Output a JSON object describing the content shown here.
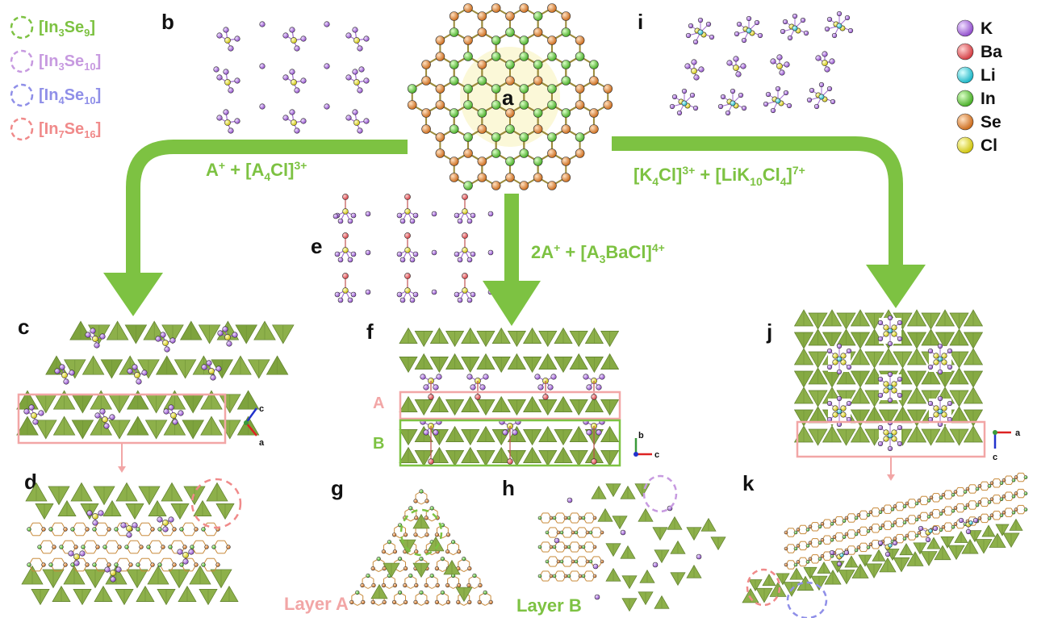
{
  "clusters": [
    {
      "name": "[In3Se9]",
      "base": "[In",
      "n1": "3",
      "mid": "Se",
      "n2": "9",
      "end": "]",
      "color": "#7dc242"
    },
    {
      "name": "[In3Se10]",
      "base": "[In",
      "n1": "3",
      "mid": "Se",
      "n2": "10",
      "end": "]",
      "color": "#c79ae0"
    },
    {
      "name": "[In4Se10]",
      "base": "[In",
      "n1": "4",
      "mid": "Se",
      "n2": "10",
      "end": "]",
      "color": "#8f8fe8"
    },
    {
      "name": "[In7Se16]",
      "base": "[In",
      "n1": "7",
      "mid": "Se",
      "n2": "16",
      "end": "]",
      "color": "#f08a8a"
    }
  ],
  "legend": [
    {
      "label": "K",
      "color": "#9b59d0"
    },
    {
      "label": "Ba",
      "color": "#e0484c"
    },
    {
      "label": "Li",
      "color": "#1fc7d6"
    },
    {
      "label": "In",
      "color": "#58c230"
    },
    {
      "label": "Se",
      "color": "#d9782a"
    },
    {
      "label": "Cl",
      "color": "#e6dc1a"
    }
  ],
  "panels": {
    "a": "a",
    "b": "b",
    "c": "c",
    "d": "d",
    "e": "e",
    "f": "f",
    "g": "g",
    "h": "h",
    "i": "i",
    "j": "j",
    "k": "k"
  },
  "reactions": {
    "left": {
      "p1": "A",
      "s1": "+",
      "p2": " + [A",
      "n1": "4",
      "p3": "Cl]",
      "s2": "3+"
    },
    "middle": {
      "p1": "2A",
      "s1": "+",
      "p2": " + [A",
      "n1": "3",
      "p3": "BaCl]",
      "s2": "4+"
    },
    "right": {
      "p1": "[K",
      "n1": "4",
      "p2": "Cl]",
      "s1": "3+",
      "p3": " + [LiK",
      "n2": "10",
      "p4": "Cl",
      "n3": "4",
      "p5": "]",
      "s2": "7+"
    }
  },
  "layer_labels": {
    "A": "A",
    "B": "B",
    "layerA": "Layer A",
    "layerB": "Layer B"
  },
  "axes": {
    "c_panel": {
      "up": "c",
      "side": "a"
    },
    "f_panel": {
      "up": "b",
      "side": "c"
    },
    "j_panel": {
      "side": "a",
      "down": "c"
    }
  },
  "colors": {
    "arrow": "#7dc242",
    "tetra": "#8db04a",
    "tetra_dark": "#6f9238",
    "highlight_pink": "#f2a6a6",
    "highlight_green": "#7dc242"
  }
}
